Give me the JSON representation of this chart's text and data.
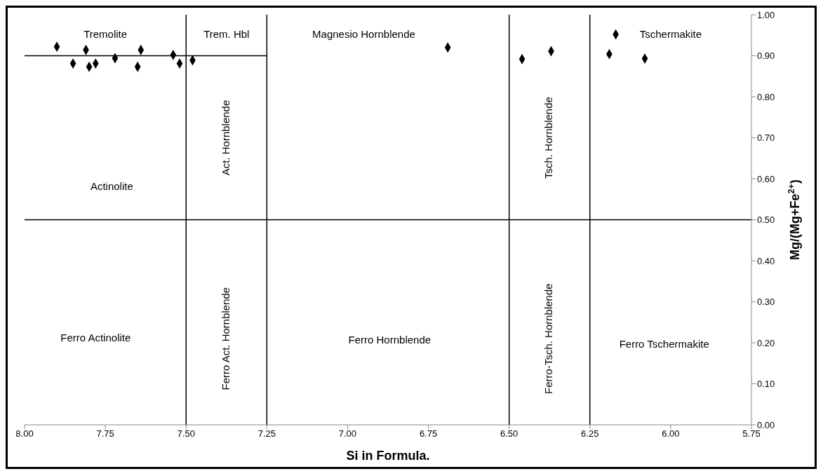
{
  "chart_data": {
    "type": "scatter",
    "xlabel": "Si in Formula.",
    "ylabel": "Mg/(Mg+Fe$^{2+}$)",
    "xlim": [
      8,
      5.75
    ],
    "ylim": [
      0,
      1
    ],
    "xticks": [
      {
        "value": 8,
        "label": "8.00"
      },
      {
        "value": 7.75,
        "label": "7.75"
      },
      {
        "value": 7.5,
        "label": "7.50"
      },
      {
        "value": 7.25,
        "label": "7.25"
      },
      {
        "value": 7,
        "label": "7.00"
      },
      {
        "value": 6.75,
        "label": "6.75"
      },
      {
        "value": 6.5,
        "label": "6.50"
      },
      {
        "value": 6.25,
        "label": "6.25"
      },
      {
        "value": 6,
        "label": "6.00"
      },
      {
        "value": 5.75,
        "label": "5.75"
      }
    ],
    "yticks": [
      {
        "value": 0,
        "label": "0.00"
      },
      {
        "value": 0.1,
        "label": "0.10"
      },
      {
        "value": 0.2,
        "label": "0.20"
      },
      {
        "value": 0.3,
        "label": "0.30"
      },
      {
        "value": 0.4,
        "label": "0.40"
      },
      {
        "value": 0.5,
        "label": "0.50"
      },
      {
        "value": 0.6,
        "label": "0.60"
      },
      {
        "value": 0.7,
        "label": "0.70"
      },
      {
        "value": 0.8,
        "label": "0.80"
      },
      {
        "value": 0.9,
        "label": "0.90"
      },
      {
        "value": 1,
        "label": "1.00"
      }
    ],
    "grid": false,
    "legend": false,
    "marker": "diamond",
    "series": [
      {
        "color": "#000000",
        "x": [
          7.9,
          7.81,
          7.64,
          7.54,
          7.85,
          7.8,
          7.78,
          7.72,
          7.65,
          7.52,
          7.48,
          6.69,
          6.46,
          6.37,
          6.17,
          6.19,
          6.08
        ],
        "values": [
          0.922,
          0.914,
          0.914,
          0.902,
          0.881,
          0.873,
          0.881,
          0.894,
          0.873,
          0.881,
          0.889,
          0.92,
          0.892,
          0.911,
          0.952,
          0.904,
          0.893
        ]
      },
      {
        "type": "line",
        "color": "#000000",
        "marker": "none",
        "x": [
          8,
          7.25
        ],
        "values": [
          0.9,
          0.9
        ]
      }
    ],
    "ref_lines": [
      {
        "axis": "y",
        "value": 0.5,
        "color": "#000000"
      },
      {
        "axis": "x",
        "value": 7.5,
        "color": "#000000"
      },
      {
        "axis": "x",
        "value": 7.25,
        "color": "#000000"
      },
      {
        "axis": "x",
        "value": 6.5,
        "color": "#000000"
      },
      {
        "axis": "x",
        "value": 6.25,
        "color": "#000000"
      }
    ],
    "annotations": [
      "Tremolite",
      "Trem. Hbl",
      "Magnesio Hornblende",
      "Tschermakite",
      "Act. Hornblende",
      "Tsch. Hornblende",
      "Actinolite",
      "Ferro Actinolite",
      "Ferro Act. Hornblende",
      "Ferro Hornblende",
      "Ferro-Tsch. Hornblende",
      "Ferro Tschermakite"
    ]
  }
}
